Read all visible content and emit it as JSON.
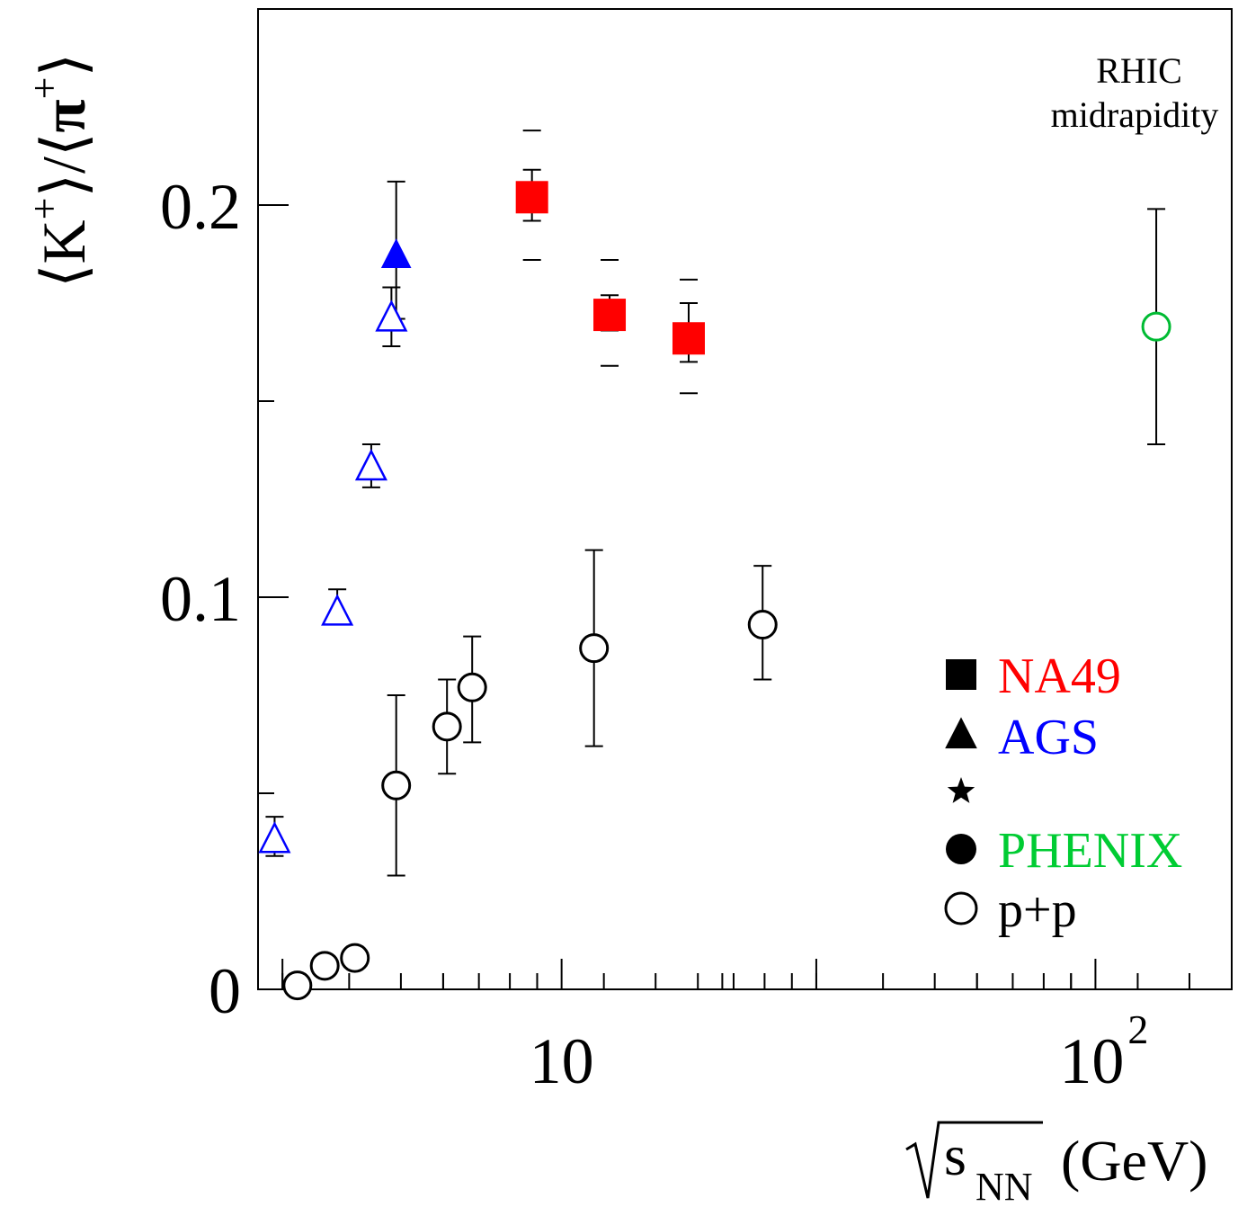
{
  "chart_data": {
    "type": "scatter",
    "xscale": "log",
    "xlim": [
      2.7,
      180
    ],
    "ylim": [
      0,
      0.25
    ],
    "x_ticks": [
      {
        "value": 10,
        "label": "10"
      },
      {
        "value": 100,
        "base": "10",
        "exp": "2"
      }
    ],
    "y_ticks": [
      {
        "value": 0,
        "label": "0"
      },
      {
        "value": 0.1,
        "label": "0.1"
      },
      {
        "value": 0.2,
        "label": "0.2"
      }
    ],
    "xlabel": {
      "radical": "s",
      "sub": "NN",
      "unit": "(GeV)"
    },
    "ylabel": {
      "k": "K",
      "pi": "π",
      "sup": "+"
    },
    "annotation": {
      "line1": "RHIC",
      "line2": "midrapidity"
    },
    "series": [
      {
        "name": "NA49",
        "marker": "square-filled",
        "color": "#ff0000",
        "points": [
          {
            "x": 8.8,
            "y": 0.202,
            "err": [
              0.196,
              0.209
            ],
            "sys": [
              0.186,
              0.219
            ]
          },
          {
            "x": 12.3,
            "y": 0.172,
            "err": [
              0.168,
              0.177
            ],
            "sys": [
              0.159,
              0.186
            ]
          },
          {
            "x": 17.3,
            "y": 0.166,
            "err": [
              0.16,
              0.175
            ],
            "sys": [
              0.152,
              0.181
            ]
          }
        ]
      },
      {
        "name": "AGS",
        "marker": "triangle-filled",
        "color": "#0000ff",
        "points": [
          {
            "x": 4.9,
            "y": 0.187,
            "err": [
              0.171,
              0.206
            ]
          }
        ]
      },
      {
        "name": "",
        "marker": "star-filled",
        "color": "#000000",
        "points": []
      },
      {
        "name": "PHENIX",
        "marker": "circle-filled",
        "color": "#00cc33",
        "points": []
      },
      {
        "name": "p+p",
        "marker": "circle-open",
        "color": "#000000",
        "points": [
          {
            "x": 3.2,
            "y": 0.001
          },
          {
            "x": 3.6,
            "y": 0.006
          },
          {
            "x": 4.1,
            "y": 0.008
          },
          {
            "x": 4.9,
            "y": 0.052,
            "err": [
              0.029,
              0.075
            ]
          },
          {
            "x": 6.1,
            "y": 0.067,
            "err": [
              0.055,
              0.079
            ]
          },
          {
            "x": 6.8,
            "y": 0.077,
            "err": [
              0.063,
              0.09
            ]
          },
          {
            "x": 11.5,
            "y": 0.087,
            "err": [
              0.062,
              0.112
            ]
          },
          {
            "x": 23.8,
            "y": 0.093,
            "err": [
              0.079,
              0.108
            ]
          }
        ]
      }
    ],
    "extra_points": [
      {
        "marker": "triangle-open",
        "color": "#0000ff",
        "x": 2.9,
        "y": 0.038,
        "err": [
          0.034,
          0.044
        ]
      },
      {
        "marker": "triangle-open",
        "color": "#0000ff",
        "x": 3.8,
        "y": 0.096,
        "err": [
          0.093,
          0.102
        ]
      },
      {
        "marker": "triangle-open",
        "color": "#0000ff",
        "x": 4.4,
        "y": 0.133,
        "err": [
          0.128,
          0.139
        ]
      },
      {
        "marker": "triangle-open",
        "color": "#0000ff",
        "x": 4.8,
        "y": 0.171,
        "err": [
          0.164,
          0.179
        ]
      },
      {
        "marker": "circle-open",
        "color": "#00bb33",
        "x": 130,
        "y": 0.169,
        "err": [
          0.139,
          0.199
        ]
      }
    ]
  }
}
